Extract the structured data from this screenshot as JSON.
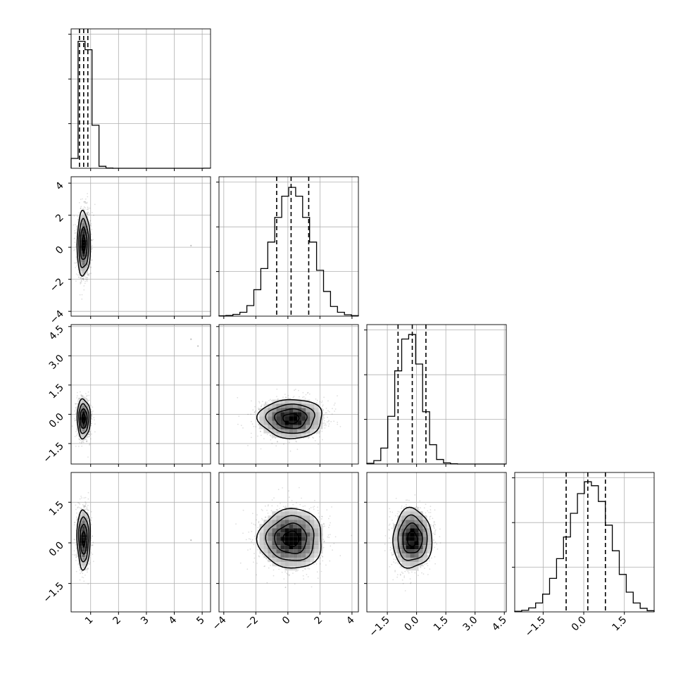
{
  "chart_data": {
    "type": "corner",
    "parameters": 4,
    "grid": true,
    "colors": {
      "frame": "#000000",
      "grid": "#b0b0b0",
      "contour": "#000000",
      "points": "#000000"
    },
    "axes": [
      {
        "lim": [
          0.3,
          5.3
        ],
        "ticks": [
          1,
          2,
          3,
          4,
          5
        ],
        "tick_labels": [
          "1",
          "2",
          "3",
          "4",
          "5"
        ]
      },
      {
        "lim": [
          -4.3,
          4.4
        ],
        "ticks": [
          -4,
          -2,
          0,
          2,
          4
        ],
        "tick_labels": [
          "−4",
          "−2",
          "0",
          "2",
          "4"
        ]
      },
      {
        "lim": [
          -2.55,
          4.6
        ],
        "ticks": [
          -1.5,
          0,
          1.5,
          3,
          4.5
        ],
        "tick_labels": [
          "−1.5",
          "0.0",
          "1.5",
          "3.0",
          "4.5"
        ]
      },
      {
        "lim": [
          -2.55,
          2.6
        ],
        "ticks": [
          -1.5,
          0,
          1.5
        ],
        "tick_labels": [
          "−1.5",
          "0.0",
          "1.5"
        ]
      }
    ],
    "marginals": [
      {
        "bin_start": 0.3,
        "bin_width": 0.25,
        "counts": [
          140,
          1800,
          1680,
          610,
          28,
          4,
          0,
          0,
          0,
          0,
          0,
          0,
          0,
          0,
          0,
          0,
          0,
          0,
          0,
          1
        ],
        "ymax": 1900,
        "quantiles": [
          0.6,
          0.75,
          0.9
        ]
      },
      {
        "bin_start": -4.3,
        "bin_width": 0.435,
        "counts": [
          2,
          4,
          10,
          22,
          60,
          150,
          270,
          420,
          560,
          680,
          730,
          680,
          560,
          420,
          260,
          140,
          55,
          22,
          8,
          3
        ],
        "ymax": 760,
        "quantiles": [
          -0.7,
          0.2,
          1.3
        ]
      },
      {
        "bin_start": -2.55,
        "bin_width": 0.3575,
        "counts": [
          6,
          30,
          140,
          420,
          820,
          1100,
          1140,
          880,
          460,
          170,
          40,
          10,
          2,
          0,
          0,
          0,
          0,
          0,
          0,
          0
        ],
        "ymax": 1180,
        "quantiles": [
          -0.95,
          -0.22,
          0.48
        ]
      },
      {
        "bin_start": -2.55,
        "bin_width": 0.2575,
        "counts": [
          3,
          8,
          20,
          45,
          90,
          170,
          270,
          380,
          500,
          600,
          660,
          640,
          560,
          440,
          310,
          190,
          100,
          45,
          18,
          6
        ],
        "ymax": 680,
        "quantiles": [
          -0.65,
          0.15,
          0.8
        ]
      }
    ],
    "joint": [
      {
        "row": 1,
        "col": 0,
        "mean": [
          0.75,
          0.2
        ],
        "sd": [
          0.12,
          1.0
        ]
      },
      {
        "row": 2,
        "col": 0,
        "mean": [
          0.75,
          -0.22
        ],
        "sd": [
          0.12,
          0.5
        ]
      },
      {
        "row": 2,
        "col": 1,
        "mean": [
          0.2,
          -0.22
        ],
        "sd": [
          1.0,
          0.5
        ]
      },
      {
        "row": 3,
        "col": 0,
        "mean": [
          0.75,
          0.15
        ],
        "sd": [
          0.12,
          0.55
        ]
      },
      {
        "row": 3,
        "col": 1,
        "mean": [
          0.2,
          0.15
        ],
        "sd": [
          1.0,
          0.55
        ]
      },
      {
        "row": 3,
        "col": 2,
        "mean": [
          -0.22,
          0.15
        ],
        "sd": [
          0.5,
          0.55
        ]
      }
    ],
    "contour_levels_sigma": [
      0.5,
      1.0,
      1.5,
      2.0
    ],
    "outliers": [
      {
        "row": 1,
        "col": 0,
        "x": 4.6,
        "y": 0.1
      },
      {
        "row": 2,
        "col": 0,
        "x": 4.6,
        "y": 3.85
      },
      {
        "row": 2,
        "col": 0,
        "x": 4.85,
        "y": 3.5
      },
      {
        "row": 3,
        "col": 0,
        "x": 4.6,
        "y": 0.1
      }
    ]
  }
}
